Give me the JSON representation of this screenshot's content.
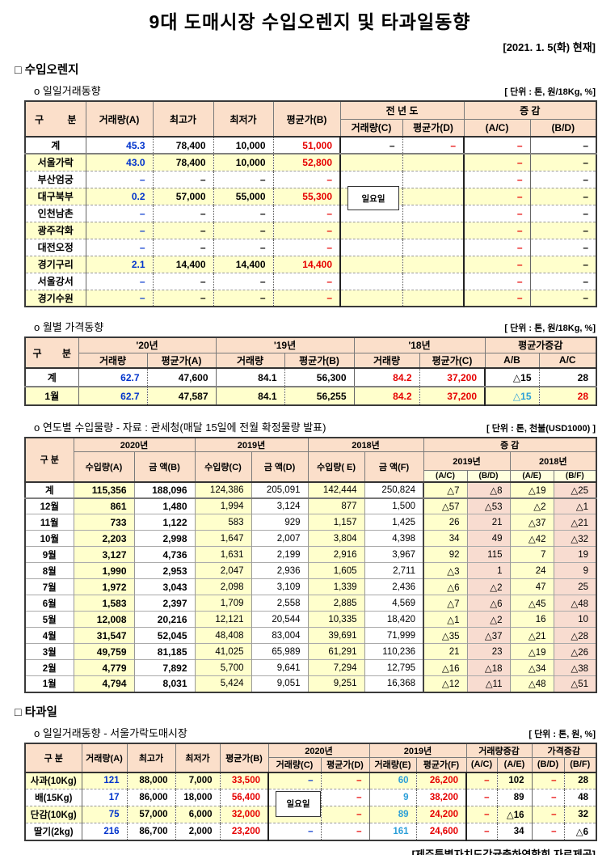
{
  "page": {
    "title": "9대 도매시장 수입오렌지 및 타과일동향",
    "date_note": "[2021. 1. 5(화) 현재]",
    "footer_note": "[제주특별자치도감귤출하연합회 자료제공]"
  },
  "colors": {
    "blue": "#0033cc",
    "lightblue": "#2b9fd8",
    "red": "#e60000",
    "black": "#000000",
    "header_bg": "#fbdfca",
    "yellow_bg": "#ffffcc",
    "pink_bg": "#f8dcd0",
    "pale_yellow_bg": "#ffffde"
  },
  "section_orange": {
    "heading": "□ 수입오렌지",
    "daily": {
      "subtitle": "o  일일거래동향",
      "unit": "[ 단위 : 톤, 원/18Kg, %]",
      "overlay": "일요일",
      "header": {
        "gubun": "구 분",
        "vol_a": "거래량(A)",
        "high": "최고가",
        "low": "최저가",
        "avg_b": "평균가(B)",
        "prev_year": "전 년 도",
        "change": "증  감",
        "vol_c": "거래량(C)",
        "avg_d": "평균가(D)",
        "ac": "(A/C)",
        "bd": "(B/D)"
      },
      "rows": [
        {
          "label": "계",
          "cells": [
            [
              "45.3",
              "blue"
            ],
            "78,400",
            "10,000",
            [
              "51,000",
              "red"
            ],
            "–",
            [
              "–",
              "red"
            ],
            [
              "–",
              "red"
            ],
            "–"
          ]
        },
        {
          "label": "서울가락",
          "cells": [
            [
              "43.0",
              "blue"
            ],
            "78,400",
            "10,000",
            [
              "52,800",
              "red"
            ],
            "",
            "",
            [
              "–",
              "red"
            ],
            "–"
          ]
        },
        {
          "label": "부산엄궁",
          "cells": [
            [
              "–",
              "blue"
            ],
            "–",
            "–",
            [
              "–",
              "red"
            ],
            "",
            "",
            [
              "–",
              "red"
            ],
            "–"
          ]
        },
        {
          "label": "대구북부",
          "cells": [
            [
              "0.2",
              "blue"
            ],
            "57,000",
            "55,000",
            [
              "55,300",
              "red"
            ],
            "",
            "",
            [
              "–",
              "red"
            ],
            "–"
          ]
        },
        {
          "label": "인천남촌",
          "cells": [
            [
              "–",
              "blue"
            ],
            "–",
            "–",
            [
              "–",
              "red"
            ],
            "",
            "",
            [
              "–",
              "red"
            ],
            "–"
          ]
        },
        {
          "label": "광주각화",
          "cells": [
            [
              "–",
              "blue"
            ],
            "–",
            "–",
            [
              "–",
              "red"
            ],
            "",
            "",
            [
              "–",
              "red"
            ],
            "–"
          ]
        },
        {
          "label": "대전오정",
          "cells": [
            [
              "–",
              "blue"
            ],
            "–",
            "–",
            [
              "–",
              "red"
            ],
            "",
            "",
            [
              "–",
              "red"
            ],
            "–"
          ]
        },
        {
          "label": "경기구리",
          "cells": [
            [
              "2.1",
              "blue"
            ],
            "14,400",
            "14,400",
            [
              "14,400",
              "red"
            ],
            "",
            "",
            [
              "–",
              "red"
            ],
            "–"
          ]
        },
        {
          "label": "서울강서",
          "cells": [
            [
              "–",
              "blue"
            ],
            "–",
            "–",
            [
              "–",
              "red"
            ],
            "",
            "",
            [
              "–",
              "red"
            ],
            "–"
          ]
        },
        {
          "label": "경기수원",
          "cells": [
            [
              "–",
              "blue"
            ],
            "–",
            "–",
            [
              "–",
              "red"
            ],
            "",
            "",
            [
              "–",
              "red"
            ],
            "–"
          ]
        }
      ]
    },
    "monthly": {
      "subtitle": "o  월별 가격동향",
      "unit": "[ 단위 : 톤, 원/18Kg, %]",
      "header": {
        "gubun": "구 분",
        "y20": "'20년",
        "y19": "'19년",
        "y18": "'18년",
        "chg": "평균가증감",
        "vol1": "거래량",
        "avg_a": "평균가(A)",
        "vol2": "거래량",
        "avg_b": "평균가(B)",
        "vol3": "거래량",
        "avg_c": "평균가(C)",
        "ab": "A/B",
        "ac": "A/C"
      },
      "rows": [
        {
          "label": "계",
          "cells": [
            [
              "62.7",
              "blue"
            ],
            "47,600",
            "84.1",
            "56,300",
            [
              "84.2",
              "red"
            ],
            [
              "37,200",
              "red"
            ],
            "△15",
            "28"
          ]
        },
        {
          "label": "1월",
          "cells": [
            [
              "62.7",
              "blue"
            ],
            "47,587",
            "84.1",
            "56,255",
            [
              "84.2",
              "red"
            ],
            [
              "37,200",
              "red"
            ],
            [
              "△15",
              "lightblue"
            ],
            [
              "28",
              "red"
            ]
          ]
        }
      ]
    },
    "yearly": {
      "subtitle": "o  연도별 수입물량 - 자료 : 관세청(매달 15일에 전월 확정물량 발표)",
      "unit": "[ 단위 : 톤, 천불(USD1000) ]",
      "header": {
        "gubun": "구 분",
        "y2020": "2020년",
        "y2019": "2019년",
        "y2018": "2018년",
        "chg": "증  감",
        "imp_a": "수입량(A)",
        "amt_b": "금 액(B)",
        "imp_c": "수입량(C)",
        "amt_d": "금 액(D)",
        "imp_e": "수입량( E)",
        "amt_f": "금 액(F)",
        "chg19": "2019년",
        "chg18": "2018년",
        "ac": "(A/C)",
        "bd": "(B/D)",
        "ae": "(A/E)",
        "bf": "(B/F)"
      },
      "rows": [
        {
          "label": "계",
          "cells": [
            "115,356",
            "188,096",
            "124,386",
            "205,091",
            "142,444",
            "250,824",
            "△7",
            "△8",
            "△19",
            "△25"
          ]
        },
        {
          "label": "12월",
          "cells": [
            "861",
            "1,480",
            "1,994",
            "3,124",
            "877",
            "1,500",
            "△57",
            "△53",
            "△2",
            "△1"
          ]
        },
        {
          "label": "11월",
          "cells": [
            "733",
            "1,122",
            "583",
            "929",
            "1,157",
            "1,425",
            "26",
            "21",
            "△37",
            "△21"
          ]
        },
        {
          "label": "10월",
          "cells": [
            "2,203",
            "2,998",
            "1,647",
            "2,007",
            "3,804",
            "4,398",
            "34",
            "49",
            "△42",
            "△32"
          ]
        },
        {
          "label": "9월",
          "cells": [
            "3,127",
            "4,736",
            "1,631",
            "2,199",
            "2,916",
            "3,967",
            "92",
            "115",
            "7",
            "19"
          ]
        },
        {
          "label": "8월",
          "cells": [
            "1,990",
            "2,953",
            "2,047",
            "2,936",
            "1,605",
            "2,711",
            "△3",
            "1",
            "24",
            "9"
          ]
        },
        {
          "label": "7월",
          "cells": [
            "1,972",
            "3,043",
            "2,098",
            "3,109",
            "1,339",
            "2,436",
            "△6",
            "△2",
            "47",
            "25"
          ]
        },
        {
          "label": "6월",
          "cells": [
            "1,583",
            "2,397",
            "1,709",
            "2,558",
            "2,885",
            "4,569",
            "△7",
            "△6",
            "△45",
            "△48"
          ]
        },
        {
          "label": "5월",
          "cells": [
            "12,008",
            "20,216",
            "12,121",
            "20,544",
            "10,335",
            "18,420",
            "△1",
            "△2",
            "16",
            "10"
          ]
        },
        {
          "label": "4월",
          "cells": [
            "31,547",
            "52,045",
            "48,408",
            "83,004",
            "39,691",
            "71,999",
            "△35",
            "△37",
            "△21",
            "△28"
          ]
        },
        {
          "label": "3월",
          "cells": [
            "49,759",
            "81,185",
            "41,025",
            "65,989",
            "61,291",
            "110,236",
            "21",
            "23",
            "△19",
            "△26"
          ]
        },
        {
          "label": "2월",
          "cells": [
            "4,779",
            "7,892",
            "5,700",
            "9,641",
            "7,294",
            "12,795",
            "△16",
            "△18",
            "△34",
            "△38"
          ]
        },
        {
          "label": "1월",
          "cells": [
            "4,794",
            "8,031",
            "5,424",
            "9,051",
            "9,251",
            "16,368",
            "△12",
            "△11",
            "△48",
            "△51"
          ]
        }
      ]
    }
  },
  "section_fruit": {
    "heading": "□ 타과일",
    "daily": {
      "subtitle": "o  일일거래동향 - 서울가락도매시장",
      "unit": "[ 단위 : 톤, 원, %]",
      "overlay": "일요일",
      "header": {
        "gubun": "구 분",
        "vol_a": "거래량(A)",
        "high": "최고가",
        "low": "최저가",
        "avg_b": "평균가(B)",
        "y2020": "2020년",
        "y2019": "2019년",
        "vol_chg": "거래량증감",
        "price_chg": "가격증감",
        "vol_c": "거래량(C)",
        "avg_d": "평균가(D)",
        "vol_e": "거래량(E)",
        "avg_f": "평균가(F)",
        "ac": "(A/C)",
        "ae": "(A/E)",
        "bd": "(B/D)",
        "bf": "(B/F)"
      },
      "rows": [
        {
          "label": "사과(10Kg)",
          "cells": [
            [
              "121",
              "blue"
            ],
            "88,000",
            "7,000",
            [
              "33,500",
              "red"
            ],
            [
              "–",
              "blue"
            ],
            [
              "–",
              "red"
            ],
            [
              "60",
              "lightblue"
            ],
            [
              "26,200",
              "red"
            ],
            [
              "–",
              "red"
            ],
            "102",
            [
              "–",
              "red"
            ],
            "28"
          ]
        },
        {
          "label": "배(15Kg)",
          "cells": [
            [
              "17",
              "blue"
            ],
            "86,000",
            "18,000",
            [
              "56,400",
              "red"
            ],
            "",
            [
              "–",
              "red"
            ],
            [
              "9",
              "lightblue"
            ],
            [
              "38,200",
              "red"
            ],
            [
              "–",
              "red"
            ],
            "89",
            [
              "–",
              "red"
            ],
            "48"
          ]
        },
        {
          "label": "단감(10Kg)",
          "cells": [
            [
              "75",
              "blue"
            ],
            "57,000",
            "6,000",
            [
              "32,000",
              "red"
            ],
            [
              "–",
              "blue"
            ],
            [
              "–",
              "red"
            ],
            [
              "89",
              "lightblue"
            ],
            [
              "24,200",
              "red"
            ],
            [
              "–",
              "red"
            ],
            "△16",
            [
              "–",
              "red"
            ],
            "32"
          ]
        },
        {
          "label": "딸기(2kg)",
          "cells": [
            [
              "216",
              "blue"
            ],
            "86,700",
            "2,000",
            [
              "23,200",
              "red"
            ],
            [
              "–",
              "blue"
            ],
            [
              "–",
              "red"
            ],
            [
              "161",
              "lightblue"
            ],
            [
              "24,600",
              "red"
            ],
            [
              "–",
              "red"
            ],
            "34",
            [
              "–",
              "red"
            ],
            "△6"
          ]
        }
      ]
    }
  }
}
